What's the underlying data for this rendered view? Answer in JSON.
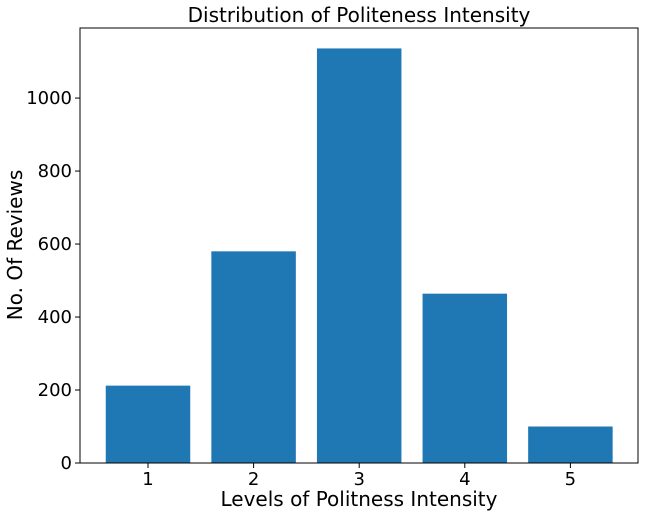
{
  "chart_data": {
    "type": "bar",
    "title": "Distribution of Politeness Intensity",
    "xlabel": "Levels of Politness Intensity",
    "ylabel": "No. Of Reviews",
    "categories": [
      "1",
      "2",
      "3",
      "4",
      "5"
    ],
    "values": [
      212,
      580,
      1136,
      464,
      100
    ],
    "ylim": [
      0,
      1192
    ],
    "yticks": [
      0,
      200,
      400,
      600,
      800,
      1000
    ],
    "bar_color": "#1f77b4",
    "grid": false,
    "legend": "none"
  }
}
